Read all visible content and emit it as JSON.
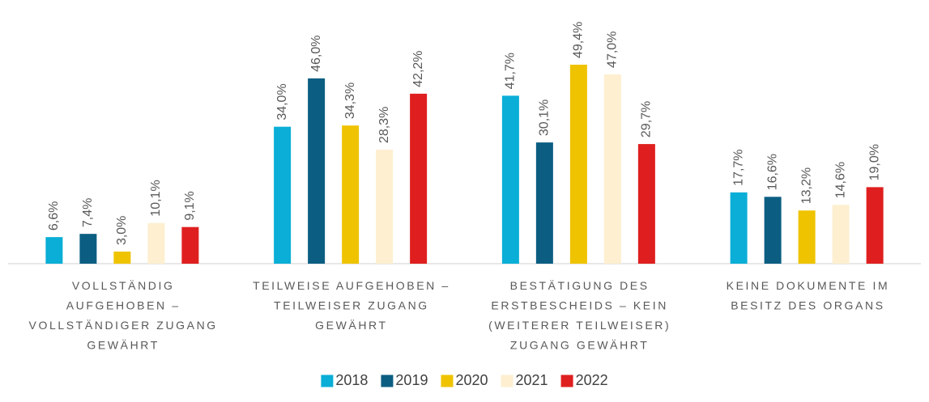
{
  "chart_data": {
    "type": "bar",
    "categories": [
      [
        "VOLLSTÄNDIG",
        "AUFGEHOBEN –",
        "VOLLSTÄNDIGER ZUGANG",
        "GEWÄHRT"
      ],
      [
        "TEILWEISE AUFGEHOBEN –",
        "TEILWEISER ZUGANG",
        "GEWÄHRT"
      ],
      [
        "BESTÄTIGUNG DES",
        "ERSTBESCHEIDS – KEIN",
        "(WEITERER TEILWEISER)",
        "ZUGANG GEWÄHRT"
      ],
      [
        "KEINE DOKUMENTE IM",
        "BESITZ DES ORGANS"
      ]
    ],
    "series": [
      {
        "name": "2018",
        "color": "#0aaed6",
        "values": [
          6.6,
          34.0,
          41.7,
          17.7
        ],
        "value_labels": [
          "6,6%",
          "34,0%",
          "41,7%",
          "17,7%"
        ]
      },
      {
        "name": "2019",
        "color": "#0b5e82",
        "values": [
          7.4,
          46.0,
          30.1,
          16.6
        ],
        "value_labels": [
          "7,4%",
          "46,0%",
          "30,1%",
          "16,6%"
        ]
      },
      {
        "name": "2020",
        "color": "#efc300",
        "values": [
          3.0,
          34.3,
          49.4,
          13.2
        ],
        "value_labels": [
          "3,0%",
          "34,3%",
          "49,4%",
          "13,2%"
        ]
      },
      {
        "name": "2021",
        "color": "#fdefd0",
        "values": [
          10.1,
          28.3,
          47.0,
          14.6
        ],
        "value_labels": [
          "10,1%",
          "28,3%",
          "47,0%",
          "14,6%"
        ]
      },
      {
        "name": "2022",
        "color": "#df1f1f",
        "values": [
          9.1,
          42.2,
          29.7,
          19.0
        ],
        "value_labels": [
          "9,1%",
          "42,2%",
          "29,7%",
          "19,0%"
        ]
      }
    ]
  }
}
